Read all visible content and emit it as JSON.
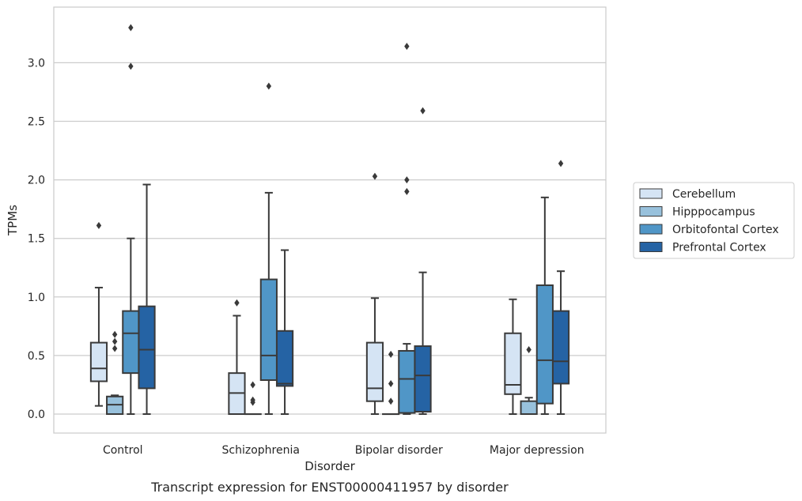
{
  "chart_data": {
    "type": "boxplot",
    "caption": "Transcript expression for ENST00000411957 by disorder",
    "xlabel": "Disorder",
    "ylabel": "TPMs",
    "ylim": [
      -0.16,
      3.48
    ],
    "yticks": [
      "0.0",
      "0.5",
      "1.0",
      "1.5",
      "2.0",
      "2.5",
      "3.0"
    ],
    "grid": "horizontal",
    "legend_position": "right",
    "categories": [
      "Control",
      "Schizophrenia",
      "Bipolar disorder",
      "Major depression"
    ],
    "series": [
      {
        "name": "Cerebellum",
        "color": "#d5e4f4",
        "boxes": [
          {
            "whislo": 0.07,
            "q1": 0.28,
            "med": 0.39,
            "q3": 0.61,
            "whishi": 1.08,
            "fliers": [
              1.61
            ]
          },
          {
            "whislo": 0.0,
            "q1": 0.0,
            "med": 0.18,
            "q3": 0.35,
            "whishi": 0.84,
            "fliers": [
              0.95
            ]
          },
          {
            "whislo": 0.0,
            "q1": 0.11,
            "med": 0.22,
            "q3": 0.61,
            "whishi": 0.99,
            "fliers": [
              2.03
            ]
          },
          {
            "whislo": 0.0,
            "q1": 0.17,
            "med": 0.25,
            "q3": 0.69,
            "whishi": 0.98,
            "fliers": []
          }
        ]
      },
      {
        "name": "Hipppocampus",
        "color": "#98c1dc",
        "boxes": [
          {
            "whislo": 0.0,
            "q1": 0.0,
            "med": 0.08,
            "q3": 0.15,
            "whishi": 0.16,
            "fliers": [
              0.56,
              0.62,
              0.68
            ]
          },
          {
            "whislo": 0.0,
            "q1": 0.0,
            "med": 0.0,
            "q3": 0.0,
            "whishi": 0.0,
            "fliers": [
              0.1,
              0.12,
              0.25
            ]
          },
          {
            "whislo": 0.0,
            "q1": 0.0,
            "med": 0.0,
            "q3": 0.0,
            "whishi": 0.0,
            "fliers": [
              0.11,
              0.26,
              0.51
            ]
          },
          {
            "whislo": 0.0,
            "q1": 0.0,
            "med": 0.0,
            "q3": 0.11,
            "whishi": 0.14,
            "fliers": [
              0.55
            ]
          }
        ]
      },
      {
        "name": "Orbitofontal Cortex",
        "color": "#5096c7",
        "boxes": [
          {
            "whislo": 0.0,
            "q1": 0.35,
            "med": 0.69,
            "q3": 0.88,
            "whishi": 1.5,
            "fliers": [
              2.97,
              3.3
            ]
          },
          {
            "whislo": 0.0,
            "q1": 0.29,
            "med": 0.5,
            "q3": 1.15,
            "whishi": 1.89,
            "fliers": [
              2.8
            ]
          },
          {
            "whislo": 0.0,
            "q1": 0.01,
            "med": 0.3,
            "q3": 0.54,
            "whishi": 0.6,
            "fliers": [
              1.9,
              2.0,
              3.14
            ]
          },
          {
            "whislo": 0.0,
            "q1": 0.09,
            "med": 0.46,
            "q3": 1.1,
            "whishi": 1.85,
            "fliers": []
          }
        ]
      },
      {
        "name": "Prefrontal Cortex",
        "color": "#2563a4",
        "boxes": [
          {
            "whislo": 0.0,
            "q1": 0.22,
            "med": 0.55,
            "q3": 0.92,
            "whishi": 1.96,
            "fliers": []
          },
          {
            "whislo": 0.0,
            "q1": 0.24,
            "med": 0.26,
            "q3": 0.71,
            "whishi": 1.4,
            "fliers": []
          },
          {
            "whislo": 0.0,
            "q1": 0.02,
            "med": 0.33,
            "q3": 0.58,
            "whishi": 1.21,
            "fliers": [
              2.59
            ]
          },
          {
            "whislo": 0.0,
            "q1": 0.26,
            "med": 0.45,
            "q3": 0.88,
            "whishi": 1.22,
            "fliers": [
              2.14
            ]
          }
        ]
      }
    ]
  }
}
